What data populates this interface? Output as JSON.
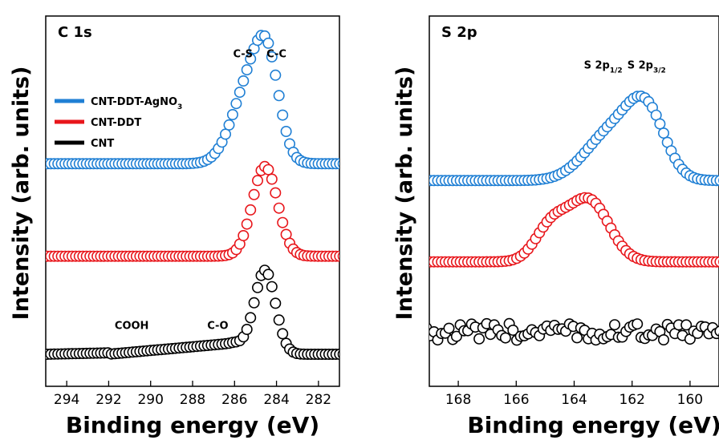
{
  "chart_data": [
    {
      "type": "scatter",
      "panel_label": "C 1s",
      "xlabel": "Binding energy (eV)",
      "ylabel": "Intensity (arb. units)",
      "xlim": [
        295,
        281
      ],
      "x_reversed": true,
      "x_ticks": [
        294,
        292,
        290,
        288,
        286,
        284,
        282
      ],
      "y_ticks_shown": false,
      "legend": {
        "position": "upper-left",
        "entries": [
          {
            "label": "CNT-DDT-AgNO",
            "subscript": "3",
            "color": "#1f7fd4"
          },
          {
            "label": "CNT-DDT",
            "color": "#e8161b"
          },
          {
            "label": "CNT",
            "color": "#000000"
          }
        ]
      },
      "annotations": [
        {
          "text": "C-S",
          "x": 285.6
        },
        {
          "text": "C-C",
          "x": 284.0
        },
        {
          "text": "COOH",
          "x": 290.9
        },
        {
          "text": "C-O",
          "x": 286.8
        }
      ],
      "series": [
        {
          "color": "#1f7fd4",
          "baseline": 0.68,
          "peaks": [
            {
              "center": 285.2,
              "height": 0.3,
              "width": 0.85
            },
            {
              "center": 284.4,
              "height": 0.24,
              "width": 0.55
            }
          ]
        },
        {
          "color": "#e8161b",
          "baseline": 0.35,
          "peaks": [
            {
              "center": 284.55,
              "height": 0.32,
              "width": 0.6
            }
          ]
        },
        {
          "color": "#000000",
          "baseline": 0.0,
          "shoulder_from": 292.0,
          "shoulder_to": 286.0,
          "shoulder_height": 0.04,
          "peaks": [
            {
              "center": 284.55,
              "height": 0.3,
              "width": 0.5
            }
          ]
        }
      ]
    },
    {
      "type": "scatter",
      "panel_label": "S 2p",
      "xlabel": "Binding energy (eV)",
      "ylabel": "Intensity (arb. units)",
      "xlim": [
        169,
        159
      ],
      "x_reversed": true,
      "x_ticks": [
        168,
        166,
        164,
        162,
        160
      ],
      "y_ticks_shown": false,
      "annotations": [
        {
          "text": "S 2p",
          "subscript": "1/2",
          "x": 163.0
        },
        {
          "text": "S 2p",
          "subscript": "3/2",
          "x": 161.5
        }
      ],
      "series": [
        {
          "color": "#1f7fd4",
          "baseline": 0.62,
          "peaks": [
            {
              "center": 162.7,
              "height": 0.17,
              "width": 0.9
            },
            {
              "center": 161.5,
              "height": 0.22,
              "width": 0.65
            }
          ]
        },
        {
          "color": "#e8161b",
          "baseline": 0.33,
          "peaks": [
            {
              "center": 164.8,
              "height": 0.12,
              "width": 0.55
            },
            {
              "center": 163.5,
              "height": 0.22,
              "width": 0.7
            }
          ]
        },
        {
          "color": "#000000",
          "baseline": 0.08,
          "noise": 0.03,
          "peaks": []
        }
      ]
    }
  ]
}
